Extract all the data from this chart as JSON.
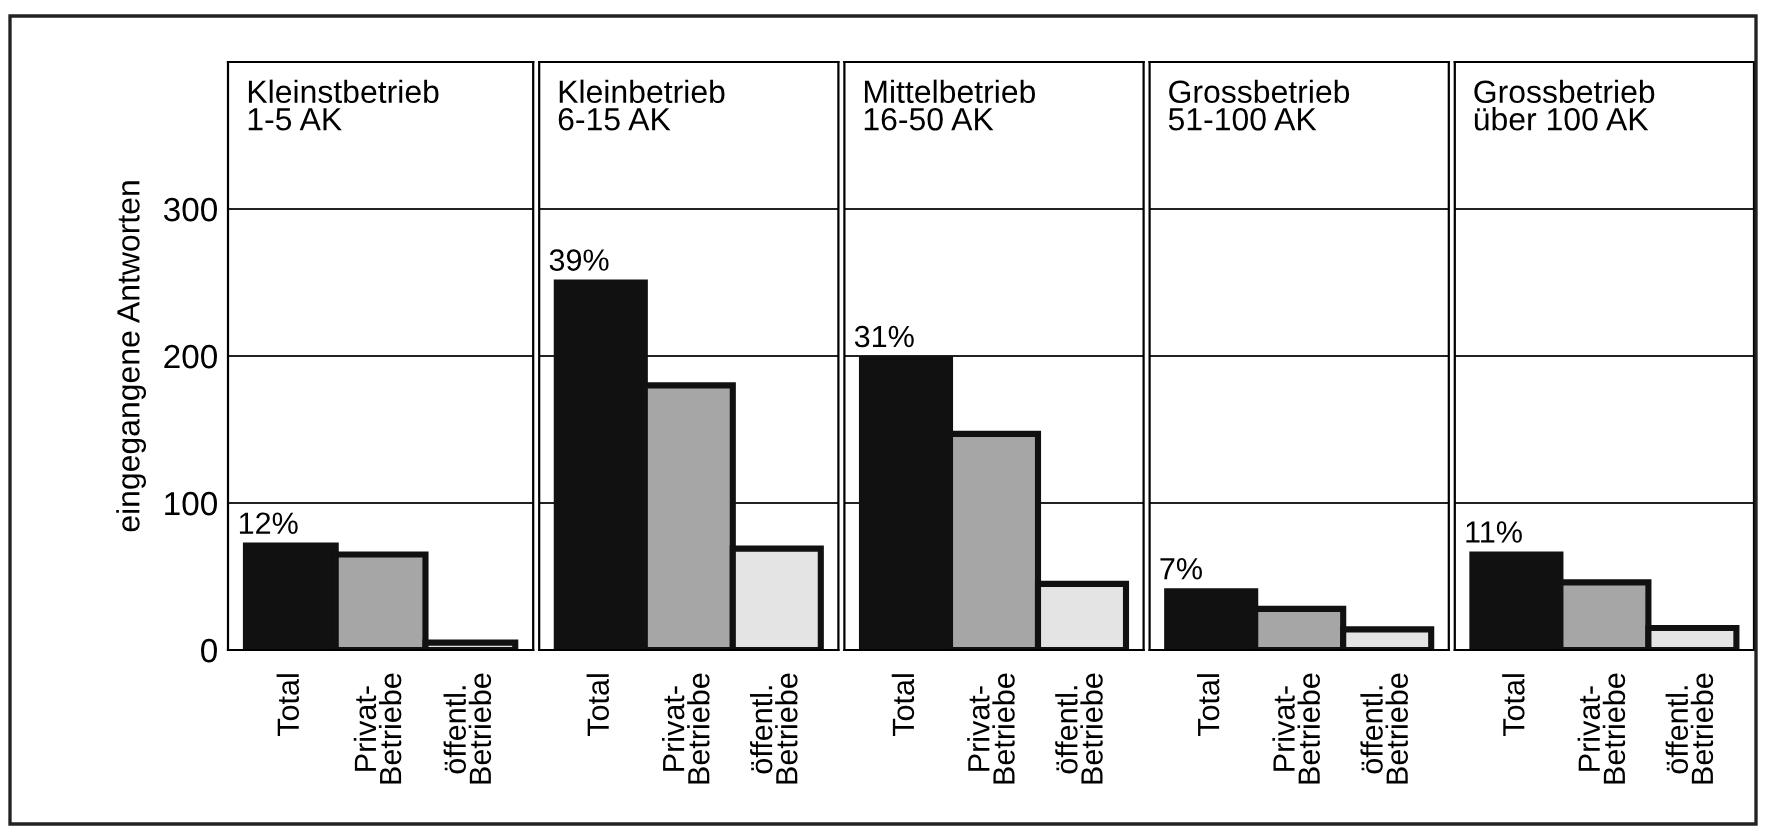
{
  "chart_data": [
    {
      "type": "bar",
      "title": "Kleinstbetrieb\n1-5 AK",
      "ylabel": "eingegangene Antworten",
      "categories": [
        "Total",
        "Privat-\nBetriebe",
        "öffentl.\nBetriebe"
      ],
      "values": [
        71,
        65,
        5
      ],
      "colors": [
        "#111111",
        "#a6a6a6",
        "#e4e4e4"
      ],
      "annotations": [
        {
          "text": "12%",
          "x": "Total",
          "y": 71
        }
      ],
      "ylim": [
        0,
        400
      ],
      "yticks": [
        0,
        100,
        200,
        300
      ],
      "grid": "y"
    },
    {
      "type": "bar",
      "title": "Kleinbetrieb\n6-15 AK",
      "categories": [
        "Total",
        "Privat-\nBetriebe",
        "öffentl.\nBetriebe"
      ],
      "values": [
        250,
        180,
        69
      ],
      "colors": [
        "#111111",
        "#a6a6a6",
        "#e4e4e4"
      ],
      "annotations": [
        {
          "text": "39%",
          "x": "Total",
          "y": 250
        }
      ],
      "ylim": [
        0,
        400
      ],
      "yticks": [
        0,
        100,
        200,
        300
      ],
      "grid": "y",
      "tick_labels": "x"
    },
    {
      "type": "bar",
      "title": "Mittelbetrieb\n16-50 AK",
      "categories": [
        "Total",
        "Privat-\nBetriebe",
        "öffentl.\nBetriebe"
      ],
      "values": [
        198,
        147,
        45
      ],
      "colors": [
        "#111111",
        "#a6a6a6",
        "#e4e4e4"
      ],
      "annotations": [
        {
          "text": "31%",
          "x": "Total",
          "y": 198
        }
      ],
      "ylim": [
        0,
        400
      ],
      "yticks": [
        0,
        100,
        200,
        300
      ],
      "grid": "y",
      "tick_labels": "x"
    },
    {
      "type": "bar",
      "title": "Grossbetrieb\n51-100 AK",
      "categories": [
        "Total",
        "Privat-\nBetriebe",
        "öffentl.\nBetriebe"
      ],
      "values": [
        40,
        28,
        14
      ],
      "colors": [
        "#111111",
        "#a6a6a6",
        "#e4e4e4"
      ],
      "annotations": [
        {
          "text": "7%",
          "x": "Total",
          "y": 40
        }
      ],
      "ylim": [
        0,
        400
      ],
      "yticks": [
        0,
        100,
        200,
        300
      ],
      "grid": "y",
      "tick_labels": "x"
    },
    {
      "type": "bar",
      "title": "Grossbetrieb\nüber 100 AK",
      "categories": [
        "Total",
        "Privat-\nBetriebe",
        "öffentl.\nBetriebe"
      ],
      "values": [
        65,
        46,
        15
      ],
      "colors": [
        "#111111",
        "#a6a6a6",
        "#e4e4e4"
      ],
      "annotations": [
        {
          "text": "11%",
          "x": "Total",
          "y": 65
        }
      ],
      "ylim": [
        0,
        400
      ],
      "yticks": [
        0,
        100,
        200,
        300
      ],
      "grid": "y",
      "tick_labels": "x"
    }
  ]
}
